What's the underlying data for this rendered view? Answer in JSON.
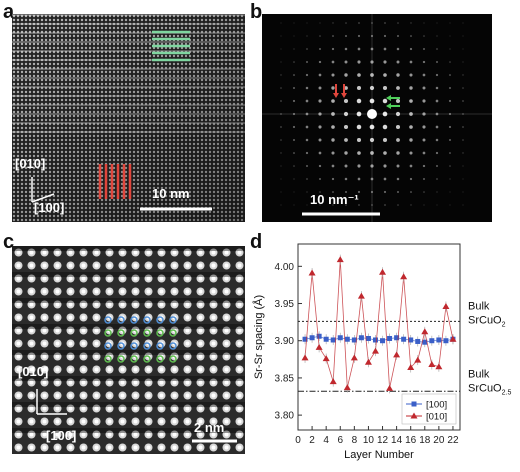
{
  "panels": {
    "a": {
      "letter": "a",
      "axis_vertical": "[010]",
      "axis_horizontal": "[100]",
      "scale_bar": "10 nm",
      "marker_colors": {
        "green": "#7fd6a0",
        "red": "#e0463c"
      }
    },
    "b": {
      "letter": "b",
      "scale_bar": "10 nm⁻¹",
      "marker_colors": {
        "green": "#4fcf5a",
        "red": "#e0463c"
      }
    },
    "c": {
      "letter": "c",
      "axis_vertical": "[010]",
      "axis_horizontal": "[100]",
      "scale_bar": "2 nm"
    },
    "d": {
      "letter": "d"
    }
  },
  "chart_data": {
    "type": "line",
    "ylabel": "Sr-Sr spacing (Å)",
    "xlabel": "Layer Number",
    "xlim": [
      0,
      23
    ],
    "ylim": [
      3.78,
      4.03
    ],
    "xticks": [
      0,
      2,
      4,
      6,
      8,
      10,
      12,
      14,
      16,
      18,
      20,
      22
    ],
    "yticks": [
      3.8,
      3.85,
      3.9,
      3.95,
      4.0
    ],
    "ytick_labels": [
      "3.80",
      "3.85",
      "3.90",
      "3.95",
      "4.00"
    ],
    "reference_lines": [
      {
        "label_line1": "Bulk",
        "label_line2": "SrCuO",
        "subscript": "2",
        "value": 3.926,
        "style": "dotted"
      },
      {
        "label_line1": "Bulk",
        "label_line2": "SrCuO",
        "subscript": "2.5",
        "value": 3.832,
        "style": "dashdot"
      }
    ],
    "series": [
      {
        "name": "[100]",
        "color": "#3a5fc8",
        "marker": "square",
        "x": [
          1,
          2,
          3,
          4,
          5,
          6,
          7,
          8,
          9,
          10,
          11,
          12,
          13,
          14,
          15,
          16,
          17,
          18,
          19,
          20,
          21,
          22
        ],
        "y": [
          3.902,
          3.904,
          3.906,
          3.902,
          3.901,
          3.904,
          3.902,
          3.901,
          3.904,
          3.903,
          3.901,
          3.9,
          3.903,
          3.904,
          3.902,
          3.901,
          3.899,
          3.898,
          3.9,
          3.901,
          3.9,
          3.902
        ]
      },
      {
        "name": "[010]",
        "color": "#c0282e",
        "marker": "triangle",
        "x": [
          1,
          2,
          3,
          4,
          5,
          6,
          7,
          8,
          9,
          10,
          11,
          12,
          13,
          14,
          15,
          16,
          17,
          18,
          19,
          20,
          21,
          22
        ],
        "y": [
          3.877,
          3.991,
          3.891,
          3.876,
          3.845,
          4.009,
          3.837,
          3.877,
          3.96,
          3.871,
          3.886,
          3.992,
          3.836,
          3.881,
          3.986,
          3.864,
          3.874,
          3.912,
          3.868,
          3.865,
          3.946,
          3.902
        ]
      }
    ],
    "legend_position": "bottom-right"
  }
}
